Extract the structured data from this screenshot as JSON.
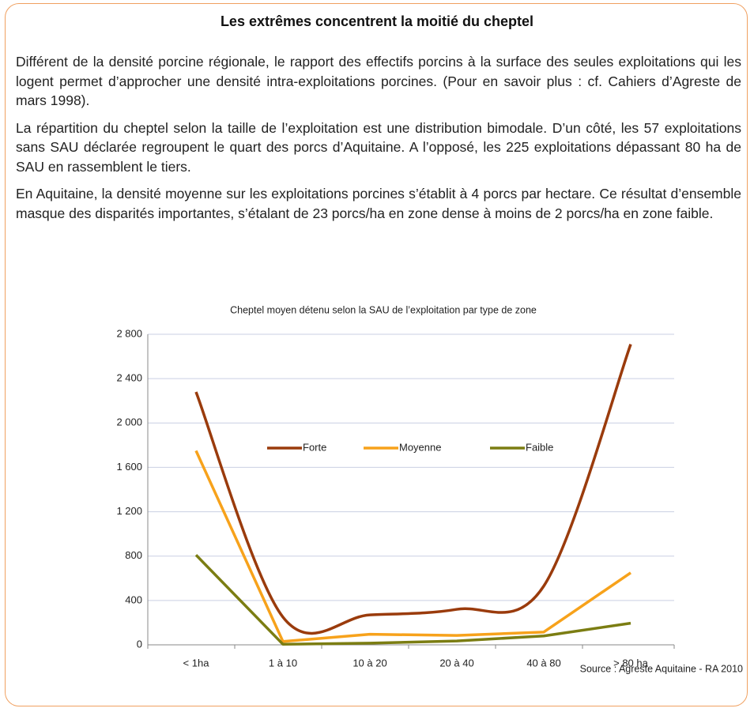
{
  "header": {
    "title": "Les extrêmes concentrent la moitié du cheptel"
  },
  "text": {
    "paragraphs": [
      "Différent de la densité porcine régionale, le rapport des effectifs porcins à la surface des seules exploitations qui les logent permet d’approcher une densité intra-exploitations porcines. (Pour en savoir plus : cf. Cahiers d’Agreste de mars 1998).",
      "La répartition du cheptel selon la taille de l’exploitation est une distribution bimodale. D’un côté, les 57 exploitations sans SAU déclarée regroupent le quart des porcs d’Aquitaine. A l’opposé, les 225 exploitations dépassant 80 ha de SAU en rassemblent le tiers.",
      "En Aquitaine, la densité moyenne sur les exploitations porcines s’établit à 4 porcs par hectare. Ce résultat d’ensemble masque des disparités importantes, s’étalant de 23 porcs/ha en zone dense à moins de 2 porcs/ha en zone faible."
    ]
  },
  "chart_data": {
    "type": "line",
    "title": "Cheptel moyen détenu selon la SAU de l’exploitation par type de zone",
    "categories": [
      "< 1ha",
      "1 à 10",
      "10 à 20",
      "20 à 40",
      "40 à 80",
      "> 80 ha"
    ],
    "series": [
      {
        "name": "Forte",
        "color": "#9a3b0c",
        "smooth": true,
        "values": [
          2280,
          250,
          270,
          320,
          530,
          2710
        ]
      },
      {
        "name": "Moyenne",
        "color": "#f7a21b",
        "smooth": false,
        "values": [
          1750,
          30,
          95,
          85,
          115,
          650
        ]
      },
      {
        "name": "Faible",
        "color": "#7b7d12",
        "smooth": false,
        "values": [
          810,
          5,
          15,
          35,
          80,
          195
        ]
      }
    ],
    "ylim": [
      0,
      2800
    ],
    "yticks": [
      0,
      400,
      800,
      {
        "value": 1200,
        "label": "1 200"
      },
      {
        "value": 1600,
        "label": "1 600"
      },
      {
        "value": 2000,
        "label": "2 000"
      },
      {
        "value": 2400,
        "label": "2 400"
      },
      {
        "value": 2800,
        "label": "2 800"
      }
    ],
    "grid": true,
    "legend": "center"
  },
  "source": "Source : Agreste Aquitaine - RA 2010"
}
